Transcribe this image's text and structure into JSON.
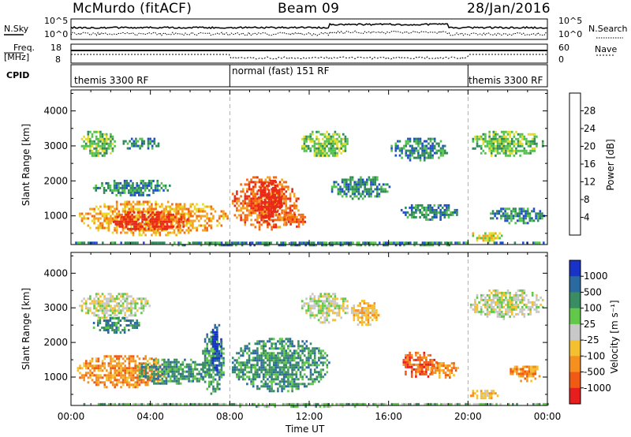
{
  "header": {
    "station": "McMurdo (fitACF)",
    "beam": "Beam 09",
    "date": "28/Jan/2016"
  },
  "side_labels": {
    "nsky": "N.Sky",
    "freq": "Freq.",
    "freq_unit": "[MHz]",
    "cpid": "CPID",
    "nsearch": "N.Search",
    "nave": "Nave"
  },
  "strip_ticks": {
    "noise_left": [
      "10^5",
      "10^0"
    ],
    "noise_right": [
      "10^5",
      "10^0"
    ],
    "freq_left": [
      "18",
      "8"
    ],
    "nave_right": [
      "60",
      "0"
    ]
  },
  "cpid_segments": [
    {
      "label": "themis 3300 RF",
      "start_h": 0,
      "end_h": 8
    },
    {
      "label": "normal (fast) 151 RF",
      "start_h": 8,
      "end_h": 20
    },
    {
      "label": "themis 3300 RF",
      "start_h": 20,
      "end_h": 24
    }
  ],
  "x_axis": {
    "label": "Time UT",
    "ticks": [
      "00:00",
      "04:00",
      "08:00",
      "12:00",
      "16:00",
      "20:00",
      "00:00"
    ]
  },
  "chart_data": [
    {
      "type": "heatmap",
      "parameter": "Power",
      "ylabel": "Slant Range [km]",
      "yticks": [
        1000,
        2000,
        3000,
        4000
      ],
      "ylim": [
        180,
        4600
      ],
      "xlim_hours": [
        0,
        24
      ],
      "colorbar": {
        "label": "Power [dB]",
        "ticks": [
          "4",
          "8",
          "12",
          "16",
          "20",
          "24",
          "28"
        ],
        "colors": [
          "#0a1ee6",
          "#1e4fc8",
          "#2f8a5a",
          "#54c24c",
          "#e6dc28",
          "#f5a21e",
          "#f26a12",
          "#e82818"
        ]
      },
      "regions": [
        {
          "t0": 0.4,
          "t1": 2.2,
          "r0": 2700,
          "r1": 3500,
          "level": 3
        },
        {
          "t0": 2.5,
          "t1": 4.5,
          "r0": 2900,
          "r1": 3300,
          "level": 2
        },
        {
          "t0": 1.0,
          "t1": 5.0,
          "r0": 1600,
          "r1": 2100,
          "level": 2
        },
        {
          "t0": 0.3,
          "t1": 7.9,
          "r0": 450,
          "r1": 1500,
          "level": 5
        },
        {
          "t0": 2.0,
          "t1": 6.0,
          "r0": 600,
          "r1": 1200,
          "level": 7
        },
        {
          "t0": 8.0,
          "t1": 11.5,
          "r0": 600,
          "r1": 2200,
          "level": 6
        },
        {
          "t0": 9.3,
          "t1": 10.6,
          "r0": 800,
          "r1": 2100,
          "level": 8
        },
        {
          "t0": 10.5,
          "t1": 11.8,
          "r0": 700,
          "r1": 1200,
          "level": 6
        },
        {
          "t0": 11.5,
          "t1": 14.0,
          "r0": 2700,
          "r1": 3500,
          "level": 3
        },
        {
          "t0": 13.0,
          "t1": 16.0,
          "r0": 1500,
          "r1": 2200,
          "level": 2
        },
        {
          "t0": 16.0,
          "t1": 19.0,
          "r0": 2600,
          "r1": 3300,
          "level": 2
        },
        {
          "t0": 16.5,
          "t1": 19.5,
          "r0": 900,
          "r1": 1400,
          "level": 2
        },
        {
          "t0": 20.0,
          "t1": 23.8,
          "r0": 2700,
          "r1": 3500,
          "level": 3
        },
        {
          "t0": 20.0,
          "t1": 21.8,
          "r0": 300,
          "r1": 600,
          "level": 4
        },
        {
          "t0": 21.0,
          "t1": 23.8,
          "r0": 800,
          "r1": 1300,
          "level": 2
        },
        {
          "t0": 0.0,
          "t1": 24.0,
          "r0": 180,
          "r1": 330,
          "level": 2
        }
      ]
    },
    {
      "type": "heatmap",
      "parameter": "Velocity",
      "ylabel": "Slant Range [km]",
      "yticks": [
        1000,
        2000,
        3000,
        4000
      ],
      "ylim": [
        180,
        4600
      ],
      "xlim_hours": [
        0,
        24
      ],
      "colorbar": {
        "label": "Velocity [m s⁻¹]",
        "ticks": [
          "1000",
          "500",
          "100",
          "25",
          "-25",
          "-100",
          "-500",
          "-1000"
        ],
        "colors": [
          "#1932c8",
          "#2a6aa0",
          "#3a8c62",
          "#62c84a",
          "#c8c8c8",
          "#f5c030",
          "#f5901e",
          "#f05a14",
          "#e61e1e"
        ]
      },
      "regions": [
        {
          "t0": 0.3,
          "t1": 4.0,
          "r0": 2700,
          "r1": 3500,
          "level": 4
        },
        {
          "t0": 1.0,
          "t1": 3.5,
          "r0": 2300,
          "r1": 2800,
          "level": 2
        },
        {
          "t0": 0.2,
          "t1": 5.0,
          "r0": 700,
          "r1": 1700,
          "level": 6
        },
        {
          "t0": 3.0,
          "t1": 7.0,
          "r0": 800,
          "r1": 1600,
          "level": 2
        },
        {
          "t0": 6.5,
          "t1": 7.7,
          "r0": 500,
          "r1": 2400,
          "level": 2
        },
        {
          "t0": 7.0,
          "t1": 7.6,
          "r0": 1200,
          "r1": 2600,
          "level": 0
        },
        {
          "t0": 8.0,
          "t1": 13.0,
          "r0": 600,
          "r1": 2200,
          "level": 2
        },
        {
          "t0": 11.5,
          "t1": 14.0,
          "r0": 2600,
          "r1": 3500,
          "level": 4
        },
        {
          "t0": 14.0,
          "t1": 15.5,
          "r0": 2500,
          "r1": 3300,
          "level": 5
        },
        {
          "t0": 16.5,
          "t1": 18.5,
          "r0": 1000,
          "r1": 1800,
          "level": 7
        },
        {
          "t0": 18.0,
          "t1": 19.5,
          "r0": 1000,
          "r1": 1500,
          "level": 6
        },
        {
          "t0": 20.0,
          "t1": 23.8,
          "r0": 2700,
          "r1": 3600,
          "level": 4
        },
        {
          "t0": 20.0,
          "t1": 21.5,
          "r0": 400,
          "r1": 700,
          "level": 5
        },
        {
          "t0": 22.0,
          "t1": 23.8,
          "r0": 900,
          "r1": 1400,
          "level": 6
        },
        {
          "t0": 0.0,
          "t1": 24.0,
          "r0": 180,
          "r1": 320,
          "level": 3
        }
      ]
    }
  ]
}
